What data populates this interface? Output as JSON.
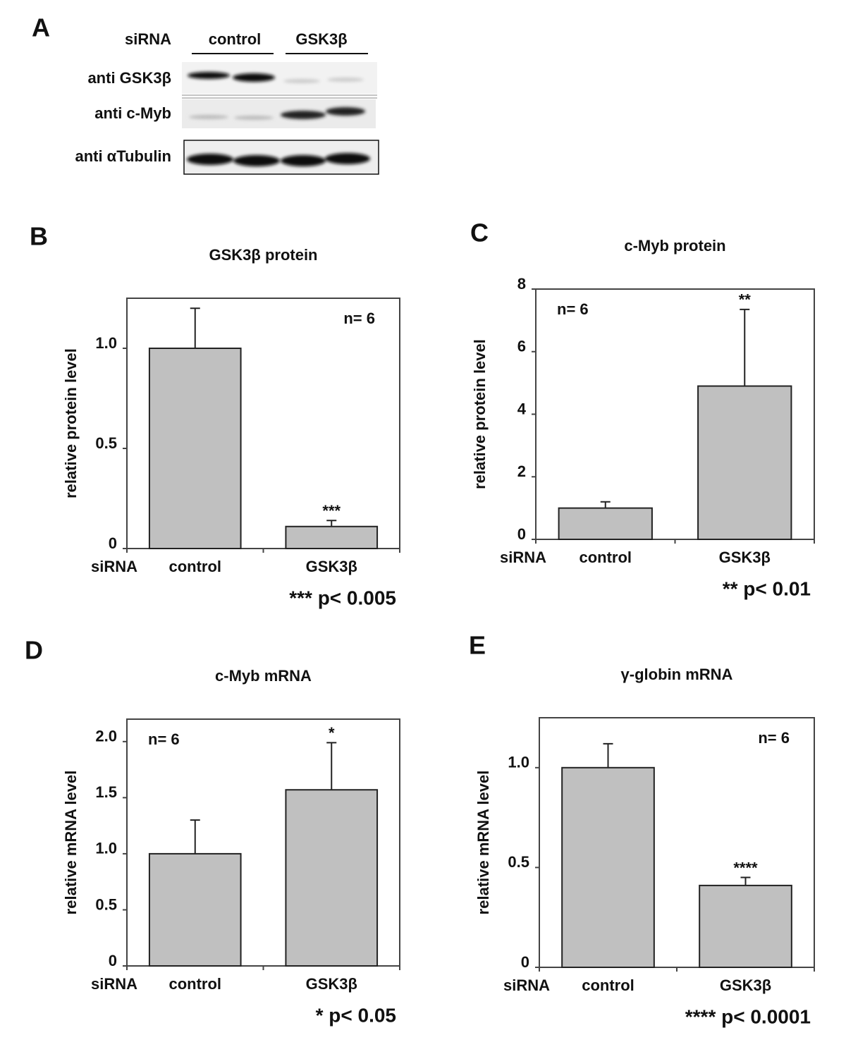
{
  "blot": {
    "label": "A",
    "siRNA": "siRNA",
    "groups": [
      "control",
      "GSK3β"
    ],
    "rows": [
      "anti GSK3β",
      "anti c-Myb",
      "anti αTubulin"
    ]
  },
  "chart_data": [
    {
      "type": "bar",
      "panel": "B",
      "title": "GSK3β protein",
      "ylabel": "relative  protein level",
      "xprefix": "siRNA",
      "categories": [
        "control",
        "GSK3β"
      ],
      "values": [
        1.0,
        0.11
      ],
      "errors": [
        0.2,
        0.03
      ],
      "color": "#c0c0c0",
      "ylim": [
        0,
        1.25
      ],
      "yticks": [
        0,
        0.5,
        {
          "value": 1,
          "label": "1.0"
        }
      ],
      "annotation": "n= 6",
      "annotation_corner": "upper right",
      "significance": [
        null,
        "***"
      ],
      "pvalue": "*** p< 0.005"
    },
    {
      "type": "bar",
      "panel": "C",
      "title": "c-Myb protein",
      "ylabel": "relative  protein level",
      "xprefix": "siRNA",
      "categories": [
        "control",
        "GSK3β"
      ],
      "values": [
        1.0,
        4.9
      ],
      "errors": [
        0.2,
        2.45
      ],
      "color": "#c0c0c0",
      "ylim": [
        0,
        8
      ],
      "yticks": [
        0,
        2,
        4,
        6,
        8
      ],
      "annotation": "n= 6",
      "annotation_corner": "upper left",
      "significance": [
        null,
        "**"
      ],
      "pvalue": "** p< 0.01"
    },
    {
      "type": "bar",
      "panel": "D",
      "title": "c-Myb mRNA",
      "ylabel": "relative mRNA level",
      "xprefix": "siRNA",
      "categories": [
        "control",
        "GSK3β"
      ],
      "values": [
        1.0,
        1.57
      ],
      "errors": [
        0.3,
        0.42
      ],
      "color": "#c0c0c0",
      "ylim": [
        0,
        2.2
      ],
      "yticks": [
        0,
        0.5,
        {
          "value": 1,
          "label": "1.0"
        },
        1.5,
        {
          "value": 2,
          "label": "2.0"
        }
      ],
      "annotation": "n= 6",
      "annotation_corner": "upper left",
      "significance": [
        null,
        "*"
      ],
      "pvalue": "* p< 0.05"
    },
    {
      "type": "bar",
      "panel": "E",
      "title": "γ-globin mRNA",
      "ylabel": "relative mRNA level",
      "xprefix": "siRNA",
      "categories": [
        "control",
        "GSK3β"
      ],
      "values": [
        1.0,
        0.41
      ],
      "errors": [
        0.12,
        0.04
      ],
      "color": "#c0c0c0",
      "ylim": [
        0,
        1.25
      ],
      "yticks": [
        0,
        0.5,
        {
          "value": 1,
          "label": "1.0"
        }
      ],
      "annotation": "n= 6",
      "annotation_corner": "upper right",
      "significance": [
        null,
        "****"
      ],
      "pvalue": "**** p< 0.0001"
    }
  ]
}
